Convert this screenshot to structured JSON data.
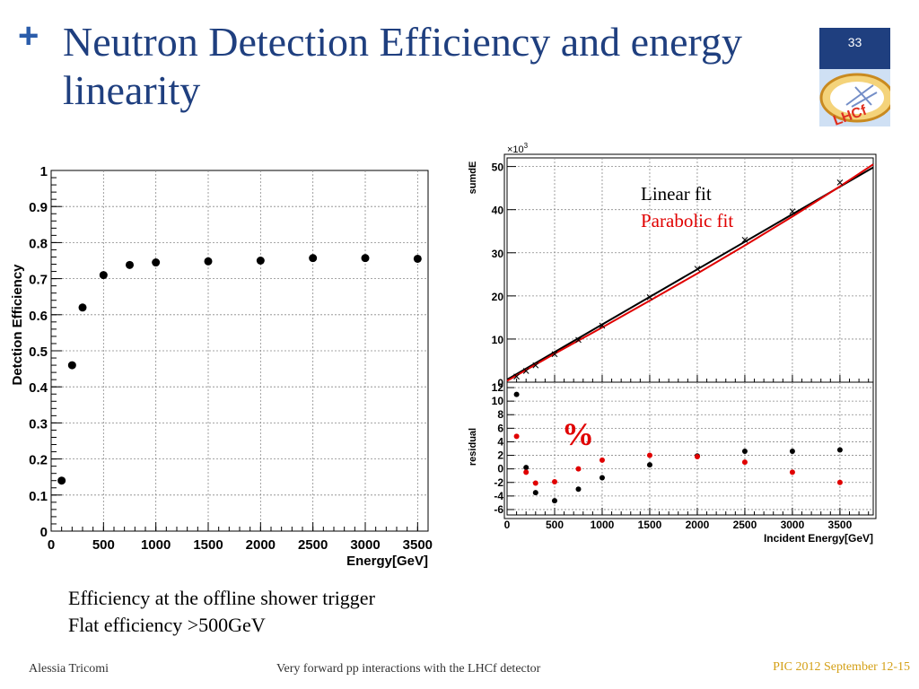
{
  "slide": {
    "bullet": "+",
    "title": "Neutron Detection Efficiency and energy linearity",
    "page_number": "33",
    "logo_text": "LHCf",
    "caption_line1": "Efficiency at the offline shower trigger",
    "caption_line2": "Flat efficiency >500GeV",
    "footer_author": "Alessia Tricomi",
    "footer_center": "Very forward pp interactions with the LHCf detector",
    "footer_right": "PIC 2012 September 12-15",
    "colors": {
      "title": "#1f3f7f",
      "accent": "#2a5caa",
      "footer_right": "#d4a017",
      "red": "#e00000",
      "black": "#000000"
    }
  },
  "chart_data": [
    {
      "type": "scatter",
      "xlabel": "Energy[GeV]",
      "ylabel": "Detction Efficiency",
      "xlim": [
        0,
        3600
      ],
      "ylim": [
        0,
        1
      ],
      "xticks": [
        "0",
        "500",
        "1000",
        "1500",
        "2000",
        "2500",
        "3000",
        "3500"
      ],
      "yticks": [
        "0",
        "0.1",
        "0.2",
        "0.3",
        "0.4",
        "0.5",
        "0.6",
        "0.7",
        "0.8",
        "0.9",
        "1"
      ],
      "grid": true,
      "series": [
        {
          "x": [
            100,
            200,
            300,
            500,
            750,
            1000,
            1500,
            2000,
            2500,
            3000,
            3500
          ],
          "y": [
            0.14,
            0.46,
            0.62,
            0.71,
            0.738,
            0.745,
            0.748,
            0.75,
            0.757,
            0.757,
            0.755
          ]
        }
      ]
    },
    {
      "type": "scatter",
      "ylabel": "sumdE",
      "y_multiplier_label": "×10",
      "y_multiplier_exp": "3",
      "xlim": [
        0,
        3850
      ],
      "ylim": [
        0,
        52
      ],
      "yticks": [
        "0",
        "10",
        "20",
        "30",
        "40",
        "50"
      ],
      "grid": true,
      "legend": [
        {
          "label": "Linear fit",
          "color": "#000000"
        },
        {
          "label": "Parabolic fit",
          "color": "#e00000"
        }
      ],
      "series": [
        {
          "marker": "x",
          "x": [
            100,
            200,
            300,
            500,
            750,
            1000,
            1500,
            2000,
            2500,
            3000,
            3500
          ],
          "y": [
            1.3,
            2.6,
            3.9,
            6.5,
            9.8,
            13.1,
            19.7,
            26.3,
            33.0,
            39.6,
            46.3
          ]
        }
      ],
      "fits": {
        "linear": {
          "x": [
            0,
            3850
          ],
          "y": [
            0.6,
            49.8
          ]
        },
        "parabolic": {
          "x": [
            0,
            500,
            1000,
            1500,
            2000,
            2500,
            3000,
            3500,
            3850
          ],
          "y": [
            0.3,
            6.6,
            12.7,
            18.9,
            25.2,
            31.7,
            38.4,
            45.4,
            50.5
          ]
        }
      }
    },
    {
      "type": "scatter",
      "xlabel": "Incident Energy[GeV]",
      "ylabel": "residual",
      "annotation": "%",
      "xlim": [
        0,
        3850
      ],
      "ylim": [
        -6.8,
        12.8
      ],
      "xticks": [
        "0",
        "500",
        "1000",
        "1500",
        "2000",
        "2500",
        "3000",
        "3500"
      ],
      "yticks": [
        "-6",
        "-4",
        "-2",
        "0",
        "2",
        "4",
        "6",
        "8",
        "10",
        "12"
      ],
      "grid": true,
      "series": [
        {
          "color": "#000000",
          "x": [
            100,
            200,
            300,
            500,
            750,
            1000,
            1500,
            2000,
            2500,
            3000,
            3500
          ],
          "y": [
            11.0,
            0.2,
            -3.5,
            -4.7,
            -3.0,
            -1.3,
            0.6,
            1.9,
            2.6,
            2.6,
            2.8
          ]
        },
        {
          "color": "#e00000",
          "x": [
            100,
            200,
            300,
            500,
            750,
            1000,
            1500,
            2000,
            2500,
            3000,
            3500
          ],
          "y": [
            4.8,
            -0.5,
            -2.1,
            -1.9,
            0.0,
            1.3,
            2.0,
            1.8,
            1.0,
            -0.5,
            -2.0
          ]
        }
      ]
    }
  ]
}
